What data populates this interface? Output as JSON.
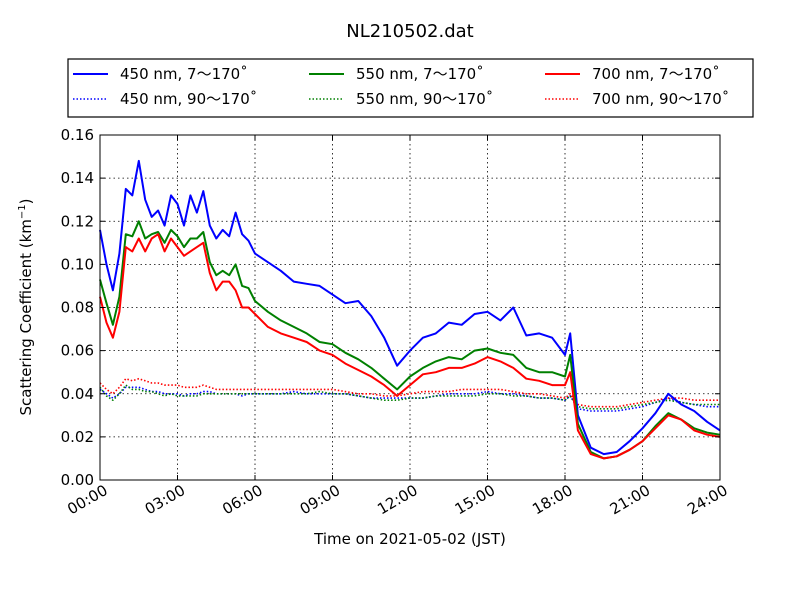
{
  "chart_data": {
    "type": "line",
    "title": "NL210502.dat",
    "xlabel": "Time on 2021-05-02 (JST)",
    "ylabel_main": "Scattering Coefficient (km",
    "ylabel_sup": "−1",
    "ylabel_close": ")",
    "x_unit": "hours",
    "xlim": [
      0,
      24
    ],
    "ylim": [
      0,
      0.16
    ],
    "x_ticks": [
      0,
      3,
      6,
      9,
      12,
      15,
      18,
      21,
      24
    ],
    "x_tick_labels": [
      "00:00",
      "03:00",
      "06:00",
      "09:00",
      "12:00",
      "15:00",
      "18:00",
      "21:00",
      "24:00"
    ],
    "y_ticks": [
      0,
      0.02,
      0.04,
      0.06,
      0.08,
      0.1,
      0.12,
      0.14,
      0.16
    ],
    "y_tick_labels": [
      "0.00",
      "0.02",
      "0.04",
      "0.06",
      "0.08",
      "0.10",
      "0.12",
      "0.14",
      "0.16"
    ],
    "grid": true,
    "legend_placement": "top, above plot",
    "x": [
      0.0,
      0.25,
      0.5,
      0.75,
      1.0,
      1.25,
      1.5,
      1.75,
      2.0,
      2.25,
      2.5,
      2.75,
      3.0,
      3.25,
      3.5,
      3.75,
      4.0,
      4.25,
      4.5,
      4.75,
      5.0,
      5.25,
      5.5,
      5.75,
      6.0,
      6.5,
      7.0,
      7.5,
      8.0,
      8.5,
      9.0,
      9.5,
      10.0,
      10.5,
      11.0,
      11.5,
      12.0,
      12.5,
      13.0,
      13.5,
      14.0,
      14.5,
      15.0,
      15.5,
      16.0,
      16.5,
      17.0,
      17.5,
      18.0,
      18.2,
      18.5,
      19.0,
      19.5,
      20.0,
      20.5,
      21.0,
      21.5,
      22.0,
      22.5,
      23.0,
      23.5,
      24.0
    ],
    "series": [
      {
        "name": "450 nm, 7～170˚",
        "color": "#0000ff",
        "style": "solid",
        "values": [
          0.116,
          0.1,
          0.088,
          0.105,
          0.135,
          0.132,
          0.148,
          0.13,
          0.122,
          0.125,
          0.118,
          0.132,
          0.128,
          0.118,
          0.132,
          0.124,
          0.134,
          0.118,
          0.112,
          0.116,
          0.113,
          0.124,
          0.114,
          0.111,
          0.105,
          0.101,
          0.097,
          0.092,
          0.091,
          0.09,
          0.086,
          0.082,
          0.083,
          0.076,
          0.066,
          0.053,
          0.06,
          0.066,
          0.068,
          0.073,
          0.072,
          0.077,
          0.078,
          0.074,
          0.08,
          0.067,
          0.068,
          0.066,
          0.058,
          0.068,
          0.03,
          0.015,
          0.012,
          0.013,
          0.018,
          0.024,
          0.031,
          0.04,
          0.035,
          0.032,
          0.027,
          0.023
        ]
      },
      {
        "name": "550 nm, 7～170˚",
        "color": "#008000",
        "style": "solid",
        "values": [
          0.093,
          0.082,
          0.072,
          0.085,
          0.114,
          0.113,
          0.12,
          0.112,
          0.114,
          0.115,
          0.11,
          0.116,
          0.113,
          0.108,
          0.112,
          0.112,
          0.115,
          0.101,
          0.095,
          0.097,
          0.095,
          0.1,
          0.09,
          0.089,
          0.083,
          0.078,
          0.074,
          0.071,
          0.068,
          0.064,
          0.063,
          0.059,
          0.056,
          0.052,
          0.047,
          0.042,
          0.048,
          0.052,
          0.055,
          0.057,
          0.056,
          0.06,
          0.061,
          0.059,
          0.058,
          0.052,
          0.05,
          0.05,
          0.048,
          0.058,
          0.026,
          0.013,
          0.01,
          0.011,
          0.014,
          0.018,
          0.025,
          0.031,
          0.028,
          0.024,
          0.022,
          0.021
        ]
      },
      {
        "name": "700 nm, 7～170˚",
        "color": "#ff0000",
        "style": "solid",
        "values": [
          0.085,
          0.073,
          0.066,
          0.078,
          0.108,
          0.106,
          0.112,
          0.106,
          0.112,
          0.114,
          0.106,
          0.112,
          0.108,
          0.104,
          0.106,
          0.108,
          0.11,
          0.096,
          0.088,
          0.092,
          0.092,
          0.088,
          0.08,
          0.08,
          0.077,
          0.071,
          0.068,
          0.066,
          0.064,
          0.06,
          0.058,
          0.054,
          0.051,
          0.048,
          0.044,
          0.039,
          0.044,
          0.049,
          0.05,
          0.052,
          0.052,
          0.054,
          0.057,
          0.055,
          0.052,
          0.047,
          0.046,
          0.044,
          0.044,
          0.05,
          0.023,
          0.012,
          0.01,
          0.011,
          0.014,
          0.018,
          0.024,
          0.03,
          0.028,
          0.023,
          0.021,
          0.02
        ]
      },
      {
        "name": "450 nm, 90～170˚",
        "color": "#0000ff",
        "style": "dotted",
        "values": [
          0.042,
          0.04,
          0.038,
          0.04,
          0.043,
          0.043,
          0.043,
          0.042,
          0.041,
          0.041,
          0.04,
          0.04,
          0.04,
          0.039,
          0.04,
          0.04,
          0.041,
          0.041,
          0.04,
          0.04,
          0.04,
          0.04,
          0.039,
          0.04,
          0.04,
          0.04,
          0.04,
          0.041,
          0.04,
          0.04,
          0.04,
          0.04,
          0.039,
          0.038,
          0.038,
          0.038,
          0.038,
          0.038,
          0.039,
          0.04,
          0.04,
          0.04,
          0.041,
          0.04,
          0.04,
          0.039,
          0.038,
          0.038,
          0.037,
          0.039,
          0.033,
          0.032,
          0.032,
          0.032,
          0.033,
          0.034,
          0.036,
          0.038,
          0.036,
          0.035,
          0.034,
          0.034
        ]
      },
      {
        "name": "550 nm, 90～170˚",
        "color": "#008000",
        "style": "dotted",
        "values": [
          0.043,
          0.039,
          0.037,
          0.04,
          0.044,
          0.042,
          0.042,
          0.041,
          0.041,
          0.04,
          0.039,
          0.04,
          0.039,
          0.039,
          0.039,
          0.039,
          0.04,
          0.04,
          0.04,
          0.04,
          0.04,
          0.04,
          0.04,
          0.04,
          0.04,
          0.04,
          0.04,
          0.04,
          0.04,
          0.041,
          0.04,
          0.04,
          0.039,
          0.038,
          0.037,
          0.037,
          0.038,
          0.038,
          0.039,
          0.039,
          0.039,
          0.039,
          0.04,
          0.04,
          0.039,
          0.039,
          0.038,
          0.038,
          0.037,
          0.039,
          0.034,
          0.033,
          0.033,
          0.033,
          0.034,
          0.035,
          0.036,
          0.037,
          0.036,
          0.035,
          0.035,
          0.035
        ]
      },
      {
        "name": "700 nm, 90～170˚",
        "color": "#ff0000",
        "style": "dotted",
        "values": [
          0.045,
          0.042,
          0.04,
          0.043,
          0.047,
          0.046,
          0.047,
          0.046,
          0.045,
          0.045,
          0.044,
          0.044,
          0.044,
          0.043,
          0.043,
          0.043,
          0.044,
          0.043,
          0.042,
          0.042,
          0.042,
          0.042,
          0.042,
          0.042,
          0.042,
          0.042,
          0.042,
          0.042,
          0.042,
          0.042,
          0.042,
          0.041,
          0.04,
          0.04,
          0.039,
          0.039,
          0.04,
          0.041,
          0.041,
          0.041,
          0.042,
          0.042,
          0.042,
          0.042,
          0.041,
          0.04,
          0.04,
          0.039,
          0.038,
          0.04,
          0.035,
          0.034,
          0.034,
          0.034,
          0.035,
          0.036,
          0.037,
          0.038,
          0.038,
          0.037,
          0.037,
          0.037
        ]
      }
    ]
  }
}
